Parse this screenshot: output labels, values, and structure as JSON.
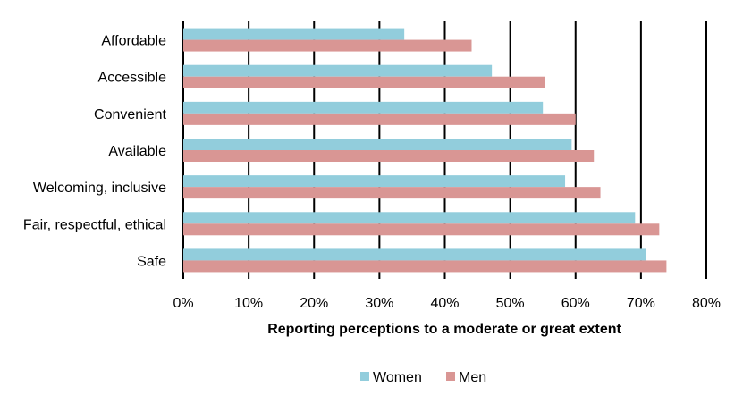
{
  "chart_data": {
    "type": "bar",
    "orientation": "horizontal",
    "title": "",
    "xlabel": "Reporting perceptions to a moderate or great extent",
    "ylabel": "",
    "xlim": [
      0,
      0.8
    ],
    "ticks": [
      "0%",
      "10%",
      "20%",
      "30%",
      "40%",
      "50%",
      "60%",
      "70%",
      "80%"
    ],
    "grid": "vertical",
    "legend_position": "bottom",
    "categories": [
      "Affordable",
      "Accessible",
      "Convenient",
      "Available",
      "Welcoming, inclusive",
      "Fair, respectful, ethical",
      "Safe"
    ],
    "series": [
      {
        "name": "Women",
        "color": "#92CDDC",
        "values": [
          0.338,
          0.472,
          0.55,
          0.594,
          0.584,
          0.691,
          0.707
        ]
      },
      {
        "name": "Men",
        "color": "#D99694",
        "values": [
          0.441,
          0.553,
          0.6,
          0.628,
          0.638,
          0.728,
          0.739
        ]
      }
    ]
  }
}
